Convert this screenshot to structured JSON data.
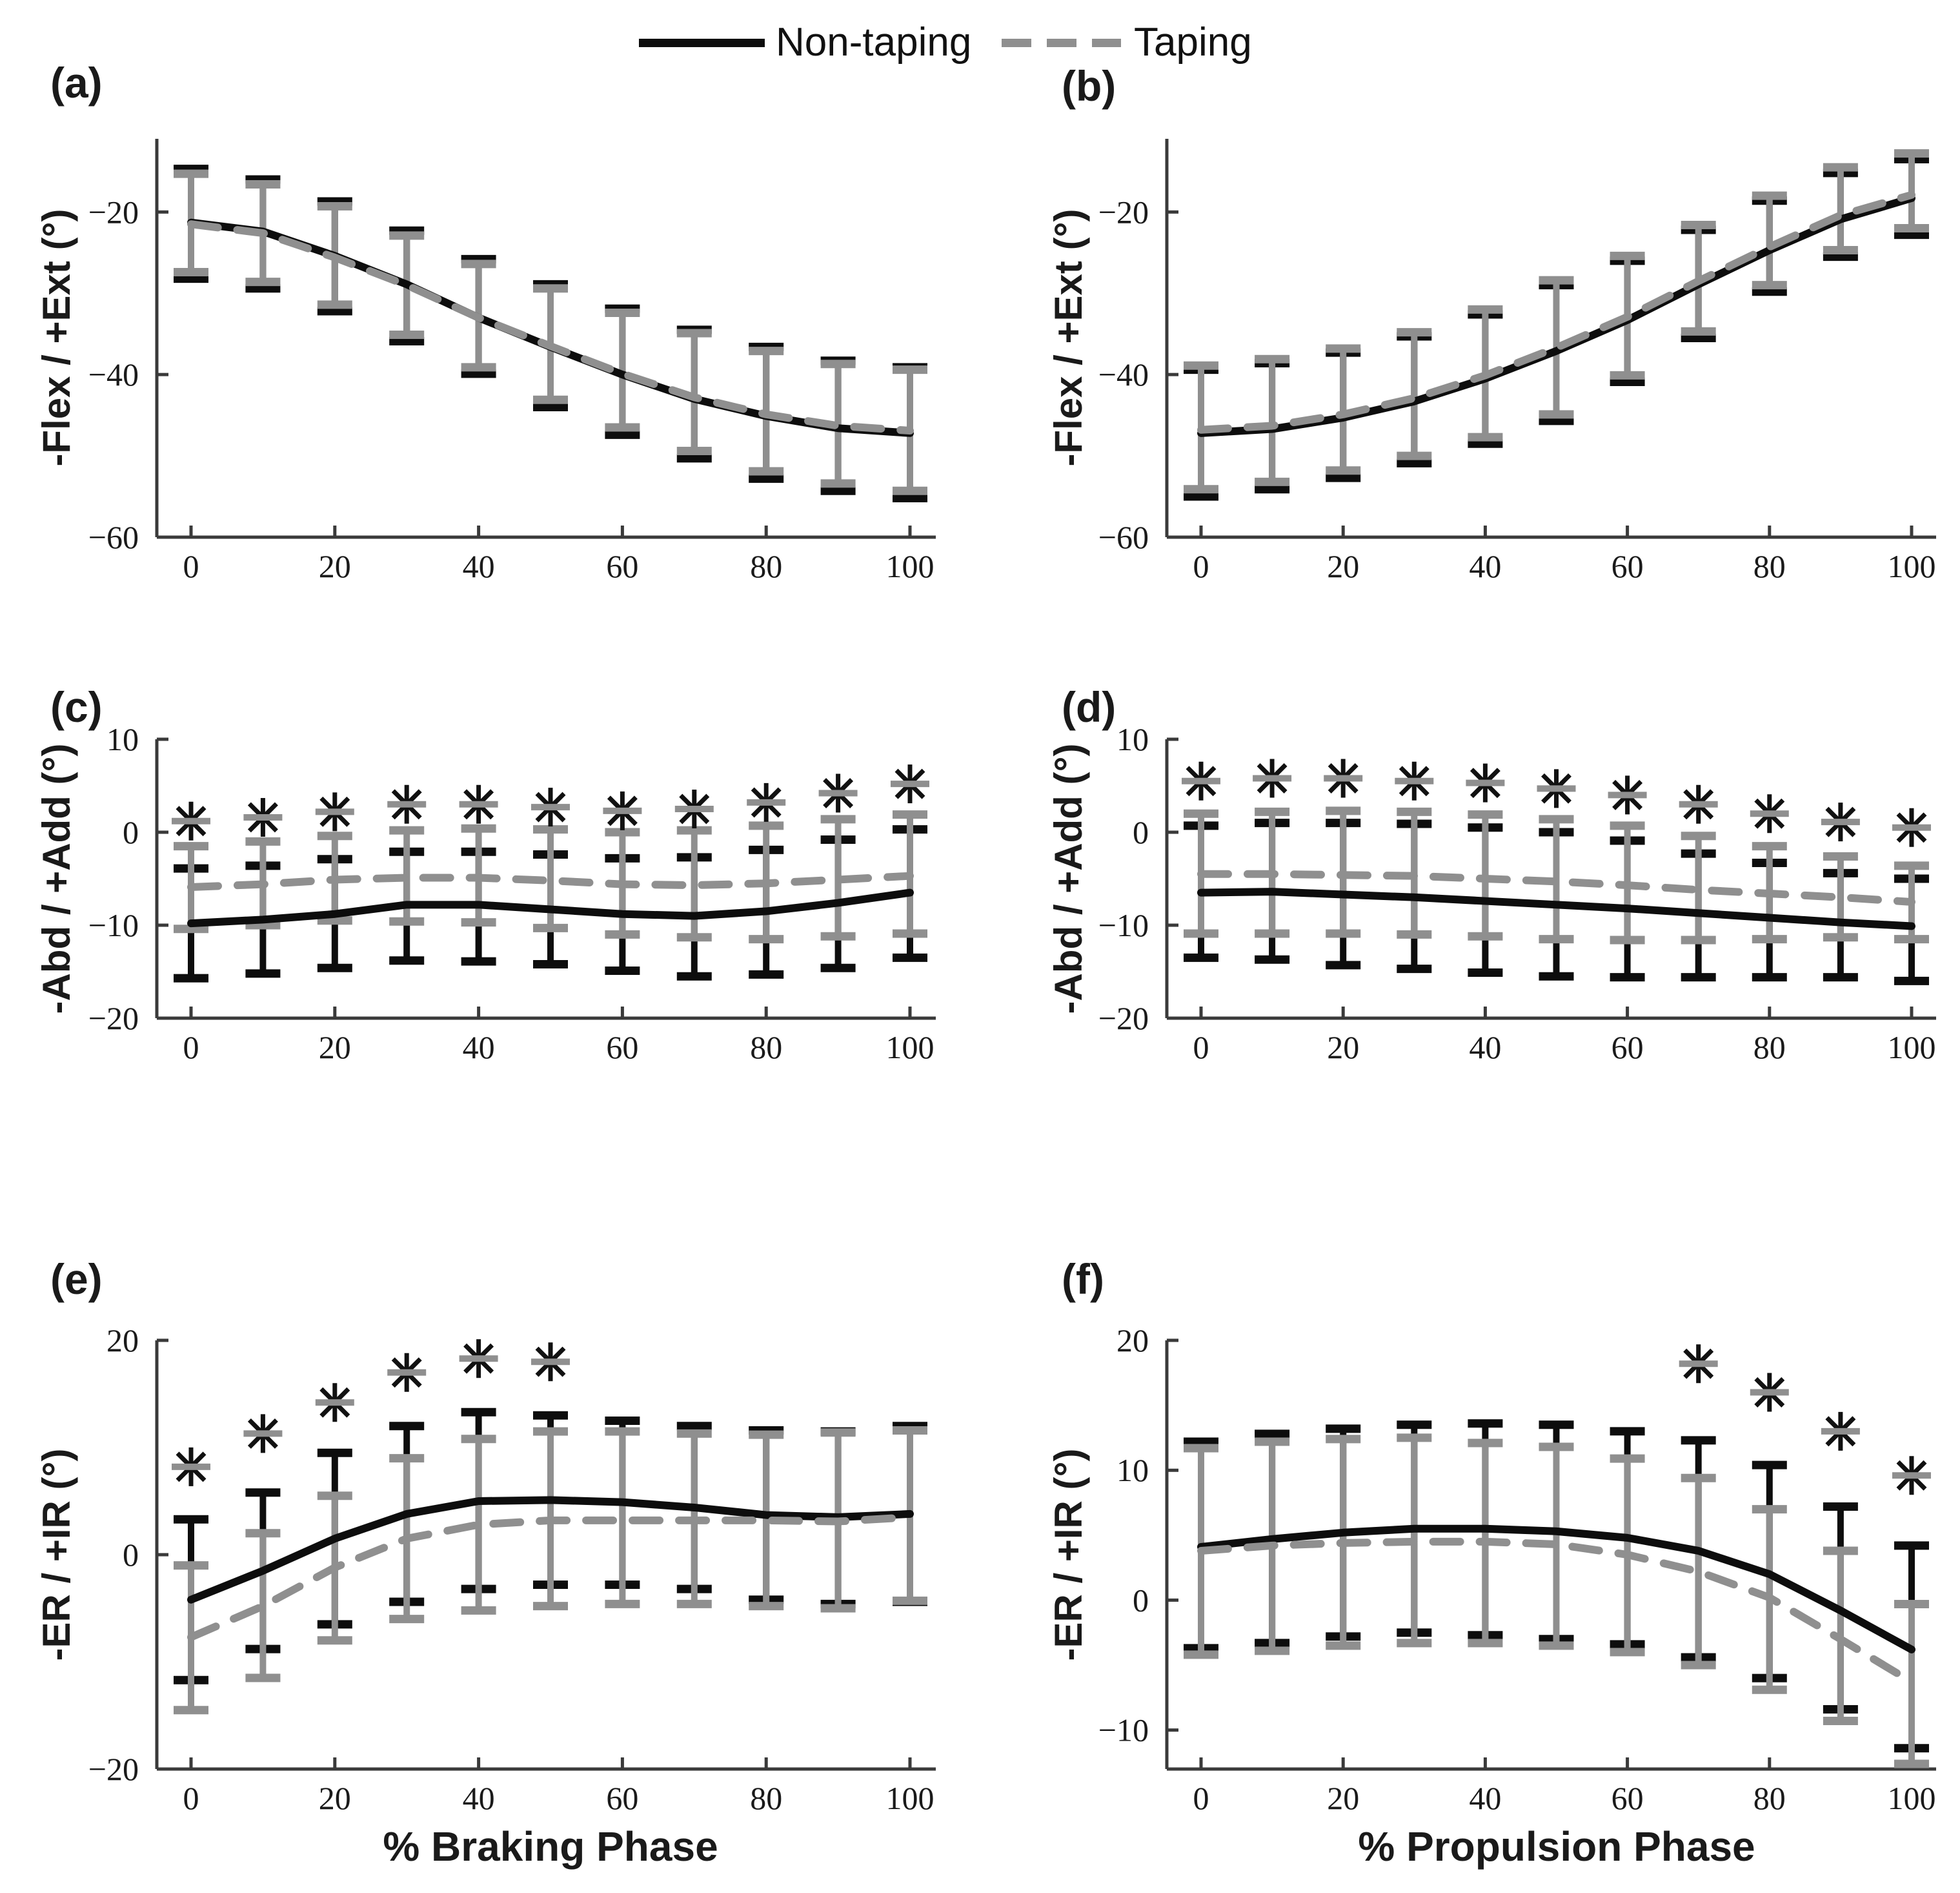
{
  "figure": {
    "background": "#ffffff",
    "significance_marker": "*",
    "colors": {
      "nontaping": "#0d0d0d",
      "taping": "#8f8f8f",
      "axis": "#3a3a3a",
      "tick_text": "#1a1a1a"
    }
  },
  "legend": {
    "position": "top-center",
    "items": [
      {
        "label": "Non-taping",
        "line": "solid",
        "color": "#0d0d0d"
      },
      {
        "label": "Taping",
        "line": "dashed",
        "color": "#8f8f8f"
      }
    ]
  },
  "chart_data": [
    {
      "id": "a",
      "panel_label": "(a)",
      "type": "line",
      "ylabel": "-Flex / +Ext (°)",
      "xlabel": "",
      "ylim": [
        -60,
        -11
      ],
      "yticks": [
        -60,
        -40,
        -20
      ],
      "xlim": [
        -5,
        104
      ],
      "xticks": [
        0,
        20,
        40,
        60,
        80,
        100
      ],
      "x": [
        0,
        10,
        20,
        30,
        40,
        50,
        60,
        70,
        80,
        90,
        100
      ],
      "grid": false,
      "series": [
        {
          "name": "Non-taping",
          "line": "solid",
          "color": "#0d0d0d",
          "mean": [
            -21.3,
            -22.4,
            -25.4,
            -28.9,
            -33.0,
            -36.6,
            -40.0,
            -43.0,
            -45.1,
            -46.6,
            -47.2
          ],
          "upper": [
            -14.7,
            -16.0,
            -18.7,
            -22.3,
            -25.8,
            -28.9,
            -31.9,
            -34.5,
            -36.6,
            -38.3,
            -39.1
          ],
          "lower": [
            -28.2,
            -29.4,
            -32.2,
            -35.9,
            -39.9,
            -44.0,
            -47.4,
            -50.3,
            -52.8,
            -54.3,
            -55.2
          ]
        },
        {
          "name": "Taping",
          "line": "dashed",
          "color": "#8f8f8f",
          "mean": [
            -21.5,
            -22.6,
            -25.6,
            -29.0,
            -33.0,
            -36.5,
            -39.9,
            -42.8,
            -44.9,
            -46.3,
            -46.9
          ],
          "upper": [
            -15.3,
            -16.6,
            -19.3,
            -22.9,
            -26.4,
            -29.4,
            -32.4,
            -34.9,
            -37.1,
            -38.7,
            -39.4
          ],
          "lower": [
            -27.4,
            -28.6,
            -31.4,
            -35.1,
            -39.1,
            -43.1,
            -46.5,
            -49.4,
            -51.9,
            -53.4,
            -54.3
          ]
        }
      ],
      "asterisks": {
        "x": [],
        "y": []
      }
    },
    {
      "id": "b",
      "panel_label": "(b)",
      "type": "line",
      "ylabel": "-Flex / +Ext (°)",
      "xlabel": "",
      "ylim": [
        -60,
        -11
      ],
      "yticks": [
        -60,
        -40,
        -20
      ],
      "xlim": [
        -5,
        104
      ],
      "xticks": [
        0,
        20,
        40,
        60,
        80,
        100
      ],
      "x": [
        0,
        10,
        20,
        30,
        40,
        50,
        60,
        70,
        80,
        90,
        100
      ],
      "grid": false,
      "series": [
        {
          "name": "Non-taping",
          "line": "solid",
          "color": "#0d0d0d",
          "mean": [
            -47.2,
            -46.7,
            -45.3,
            -43.3,
            -40.5,
            -37.1,
            -33.3,
            -28.9,
            -24.7,
            -20.9,
            -18.3
          ],
          "upper": [
            -39.4,
            -38.6,
            -37.3,
            -35.3,
            -32.6,
            -29.0,
            -26.0,
            -22.2,
            -18.6,
            -15.2,
            -13.5
          ],
          "lower": [
            -55.0,
            -54.1,
            -52.7,
            -50.9,
            -48.5,
            -45.7,
            -40.9,
            -35.5,
            -29.8,
            -25.5,
            -22.8
          ]
        },
        {
          "name": "Taping",
          "line": "dashed",
          "color": "#8f8f8f",
          "mean": [
            -46.8,
            -46.3,
            -44.9,
            -42.9,
            -40.1,
            -36.7,
            -32.9,
            -28.5,
            -24.3,
            -20.4,
            -17.9
          ],
          "upper": [
            -38.9,
            -38.1,
            -36.8,
            -34.8,
            -32.0,
            -28.4,
            -25.4,
            -21.6,
            -18.0,
            -14.5,
            -12.8
          ],
          "lower": [
            -54.1,
            -53.2,
            -51.8,
            -50.0,
            -47.7,
            -44.9,
            -40.1,
            -34.7,
            -29.0,
            -24.7,
            -22.0
          ]
        }
      ],
      "asterisks": {
        "x": [],
        "y": []
      }
    },
    {
      "id": "c",
      "panel_label": "(c)",
      "type": "line",
      "ylabel": "-Abd / +Add (°)",
      "xlabel": "",
      "ylim": [
        -20,
        10
      ],
      "yticks": [
        -20,
        -10,
        0,
        10
      ],
      "xlim": [
        -5,
        104
      ],
      "xticks": [
        0,
        20,
        40,
        60,
        80,
        100
      ],
      "x": [
        0,
        10,
        20,
        30,
        40,
        50,
        60,
        70,
        80,
        90,
        100
      ],
      "grid": false,
      "series": [
        {
          "name": "Non-taping",
          "line": "solid",
          "color": "#0d0d0d",
          "mean": [
            -9.8,
            -9.4,
            -8.8,
            -7.8,
            -7.8,
            -8.3,
            -8.8,
            -9.0,
            -8.5,
            -7.6,
            -6.5
          ],
          "upper": [
            -3.9,
            -3.6,
            -2.9,
            -2.1,
            -2.1,
            -2.4,
            -2.8,
            -2.7,
            -1.9,
            -0.8,
            0.3
          ],
          "lower": [
            -15.7,
            -15.2,
            -14.6,
            -13.8,
            -13.9,
            -14.2,
            -14.9,
            -15.5,
            -15.3,
            -14.6,
            -13.5
          ]
        },
        {
          "name": "Taping",
          "line": "dashed",
          "color": "#8f8f8f",
          "mean": [
            -5.9,
            -5.6,
            -5.1,
            -4.9,
            -4.9,
            -5.2,
            -5.6,
            -5.7,
            -5.5,
            -5.1,
            -4.7
          ],
          "upper": [
            -1.5,
            -1.0,
            -0.4,
            0.2,
            0.4,
            0.3,
            0.0,
            0.2,
            0.7,
            1.4,
            1.9
          ],
          "lower": [
            -10.4,
            -10.0,
            -9.5,
            -9.6,
            -9.7,
            -10.3,
            -11.0,
            -11.3,
            -11.5,
            -11.2,
            -10.9
          ]
        }
      ],
      "asterisks": {
        "x": [
          0,
          10,
          20,
          30,
          40,
          50,
          60,
          70,
          80,
          90,
          100
        ],
        "y": [
          1.2,
          1.6,
          2.2,
          3.0,
          3.0,
          2.7,
          2.3,
          2.5,
          3.2,
          4.2,
          5.2
        ]
      }
    },
    {
      "id": "d",
      "panel_label": "(d)",
      "type": "line",
      "ylabel": "-Abd / +Add (°)",
      "xlabel": "",
      "ylim": [
        -20,
        10
      ],
      "yticks": [
        -20,
        -10,
        0,
        10
      ],
      "xlim": [
        -5,
        104
      ],
      "xticks": [
        0,
        20,
        40,
        60,
        80,
        100
      ],
      "x": [
        0,
        10,
        20,
        30,
        40,
        50,
        60,
        70,
        80,
        90,
        100
      ],
      "grid": false,
      "series": [
        {
          "name": "Non-taping",
          "line": "solid",
          "color": "#0d0d0d",
          "mean": [
            -6.5,
            -6.4,
            -6.7,
            -7.0,
            -7.4,
            -7.8,
            -8.2,
            -8.7,
            -9.2,
            -9.7,
            -10.1
          ],
          "upper": [
            0.7,
            1.0,
            1.0,
            0.9,
            0.5,
            0.0,
            -0.9,
            -2.3,
            -3.3,
            -4.4,
            -5.0
          ],
          "lower": [
            -13.5,
            -13.7,
            -14.3,
            -14.7,
            -15.1,
            -15.5,
            -15.6,
            -15.6,
            -15.6,
            -15.6,
            -16.0
          ]
        },
        {
          "name": "Taping",
          "line": "dashed",
          "color": "#8f8f8f",
          "mean": [
            -4.5,
            -4.5,
            -4.6,
            -4.7,
            -5.0,
            -5.3,
            -5.7,
            -6.2,
            -6.6,
            -7.0,
            -7.5
          ],
          "upper": [
            2.0,
            2.2,
            2.3,
            2.2,
            1.9,
            1.4,
            0.7,
            -0.4,
            -1.5,
            -2.6,
            -3.6
          ],
          "lower": [
            -10.9,
            -10.9,
            -10.9,
            -11.0,
            -11.2,
            -11.5,
            -11.6,
            -11.6,
            -11.5,
            -11.3,
            -11.5
          ]
        }
      ],
      "asterisks": {
        "x": [
          0,
          10,
          20,
          30,
          40,
          50,
          60,
          70,
          80,
          90,
          100
        ],
        "y": [
          5.5,
          5.8,
          5.8,
          5.5,
          5.3,
          4.7,
          4.0,
          3.0,
          2.0,
          1.1,
          0.5
        ]
      }
    },
    {
      "id": "e",
      "panel_label": "(e)",
      "type": "line",
      "ylabel": "-ER / +IR (°)",
      "xlabel": "% Braking Phase",
      "ylim": [
        -20,
        20
      ],
      "yticks": [
        -20,
        0,
        20
      ],
      "xlim": [
        -5,
        104
      ],
      "xticks": [
        0,
        20,
        40,
        60,
        80,
        100
      ],
      "x": [
        0,
        10,
        20,
        30,
        40,
        50,
        60,
        70,
        80,
        90,
        100
      ],
      "grid": false,
      "series": [
        {
          "name": "Non-taping",
          "line": "solid",
          "color": "#0d0d0d",
          "mean": [
            -4.2,
            -1.5,
            1.5,
            3.8,
            5.0,
            5.1,
            4.9,
            4.4,
            3.7,
            3.5,
            3.8
          ],
          "upper": [
            3.3,
            5.8,
            9.5,
            12.0,
            13.3,
            13.0,
            12.5,
            12.0,
            11.6,
            11.5,
            12.0
          ],
          "lower": [
            -11.7,
            -8.8,
            -6.5,
            -4.4,
            -3.2,
            -2.8,
            -2.8,
            -3.2,
            -4.2,
            -4.6,
            -4.4
          ]
        },
        {
          "name": "Taping",
          "line": "dashed",
          "color": "#8f8f8f",
          "mean": [
            -7.7,
            -4.8,
            -1.2,
            1.5,
            2.8,
            3.2,
            3.2,
            3.2,
            3.2,
            3.1,
            3.5
          ],
          "upper": [
            -1.0,
            2.0,
            5.5,
            9.0,
            10.8,
            11.5,
            11.5,
            11.3,
            11.2,
            11.4,
            11.6
          ],
          "lower": [
            -14.5,
            -11.5,
            -8.0,
            -6.0,
            -5.2,
            -4.8,
            -4.6,
            -4.6,
            -4.8,
            -5.0,
            -4.3
          ]
        }
      ],
      "asterisks": {
        "x": [
          0,
          10,
          20,
          30,
          40,
          50
        ],
        "y": [
          8.2,
          11.3,
          14.2,
          17.0,
          18.3,
          18.0
        ]
      }
    },
    {
      "id": "f",
      "panel_label": "(f)",
      "type": "line",
      "ylabel": "-ER / +IR (°)",
      "xlabel": "% Propulsion Phase",
      "ylim": [
        -13,
        20
      ],
      "yticks": [
        -10,
        0,
        10,
        20
      ],
      "xlim": [
        -5,
        104
      ],
      "xticks": [
        0,
        20,
        40,
        60,
        80,
        100
      ],
      "x": [
        0,
        10,
        20,
        30,
        40,
        50,
        60,
        70,
        80,
        90,
        100
      ],
      "grid": false,
      "series": [
        {
          "name": "Non-taping",
          "line": "solid",
          "color": "#0d0d0d",
          "mean": [
            4.1,
            4.7,
            5.2,
            5.5,
            5.5,
            5.3,
            4.8,
            3.8,
            2.0,
            -0.8,
            -3.8
          ],
          "upper": [
            12.2,
            12.8,
            13.2,
            13.5,
            13.6,
            13.5,
            13.0,
            12.3,
            10.4,
            7.2,
            4.2
          ],
          "lower": [
            -3.7,
            -3.3,
            -2.8,
            -2.5,
            -2.7,
            -3.0,
            -3.4,
            -4.4,
            -6.0,
            -8.4,
            -11.4
          ]
        },
        {
          "name": "Taping",
          "line": "dashed",
          "color": "#8f8f8f",
          "mean": [
            3.8,
            4.2,
            4.4,
            4.5,
            4.5,
            4.3,
            3.5,
            2.2,
            0.2,
            -3.0,
            -6.3
          ],
          "upper": [
            11.7,
            12.2,
            12.4,
            12.5,
            12.1,
            11.8,
            10.9,
            9.4,
            7.0,
            3.8,
            -0.3
          ],
          "lower": [
            -4.2,
            -3.9,
            -3.5,
            -3.3,
            -3.3,
            -3.5,
            -4.0,
            -5.0,
            -6.9,
            -9.3,
            -12.6
          ]
        }
      ],
      "asterisks": {
        "x": [
          70,
          80,
          90,
          100
        ],
        "y": [
          18.2,
          16.0,
          13.0,
          9.6
        ]
      }
    }
  ]
}
